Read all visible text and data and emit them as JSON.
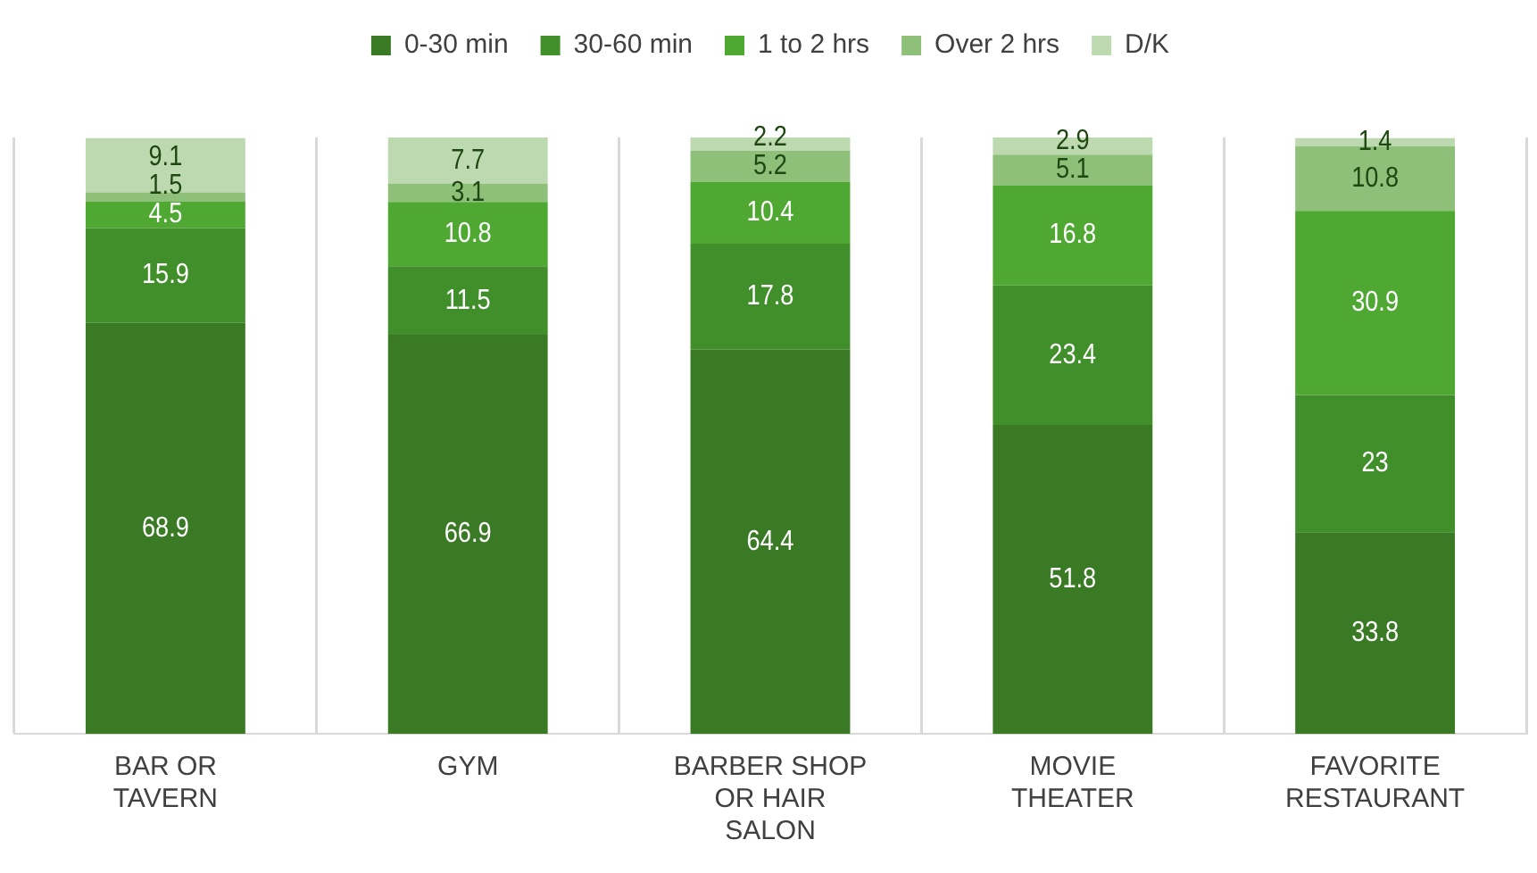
{
  "chart_data": {
    "type": "bar",
    "stacked": true,
    "categories": [
      "BAR OR TAVERN",
      "GYM",
      "BARBER SHOP OR HAIR SALON",
      "MOVIE THEATER",
      "FAVORITE RESTAURANT"
    ],
    "series": [
      {
        "name": "0-30 min",
        "color": "#3a7a24",
        "values": [
          68.9,
          66.9,
          64.4,
          51.8,
          33.8
        ]
      },
      {
        "name": "30-60 min",
        "color": "#418f2b",
        "values": [
          15.9,
          11.5,
          17.8,
          23.4,
          23
        ]
      },
      {
        "name": "1 to 2 hrs",
        "color": "#4ea832",
        "values": [
          4.5,
          10.8,
          10.4,
          16.8,
          30.9
        ]
      },
      {
        "name": "Over 2 hrs",
        "color": "#8fc07a",
        "values": [
          1.5,
          3.1,
          5.2,
          5.1,
          10.8
        ]
      },
      {
        "name": "D/K",
        "color": "#bcd9b0",
        "values": [
          9.1,
          7.7,
          2.2,
          2.9,
          1.4
        ]
      }
    ],
    "ylim": [
      0,
      100
    ],
    "tick_labels": "x",
    "grid": "x",
    "legend": "top",
    "data_labels": true
  }
}
